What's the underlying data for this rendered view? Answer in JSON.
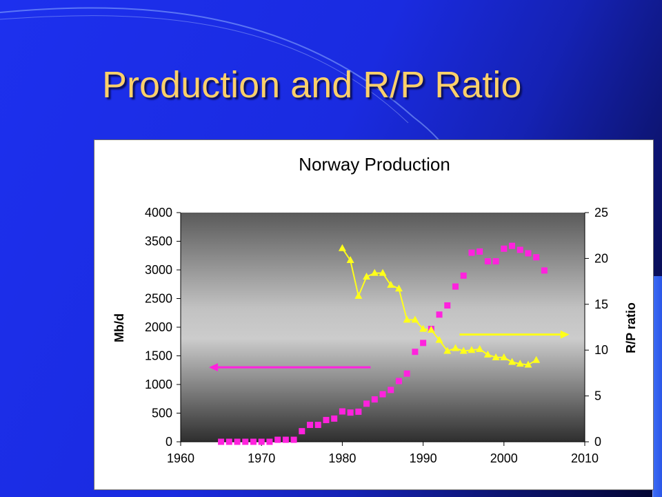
{
  "slide": {
    "title": "Production and R/P Ratio",
    "background_colors": [
      "#1d30ee",
      "#030530"
    ],
    "title_color": "#fbd06a"
  },
  "chart_data": {
    "type": "scatter",
    "title": "Norway Production",
    "xlabel": "",
    "ylabel": "Mb/d",
    "y2label": "R/P ratio",
    "xlim": [
      1960,
      2010
    ],
    "ylim": [
      0,
      4000
    ],
    "y2lim": [
      0,
      25
    ],
    "x_ticks": [
      1960,
      1970,
      1980,
      1990,
      2000,
      2010
    ],
    "y_ticks": [
      0,
      500,
      1000,
      1500,
      2000,
      2500,
      3000,
      3500,
      4000
    ],
    "y2_ticks": [
      0,
      5,
      10,
      15,
      20,
      25
    ],
    "grid": false,
    "legend": "none",
    "plot_background": "gray gradient",
    "series": [
      {
        "axis": "left",
        "marker": "square",
        "line": false,
        "color": "#ff22dd",
        "x": [
          1965,
          1966,
          1967,
          1968,
          1969,
          1970,
          1971,
          1972,
          1973,
          1974,
          1975,
          1976,
          1977,
          1978,
          1979,
          1980,
          1981,
          1982,
          1983,
          1984,
          1985,
          1986,
          1987,
          1988,
          1989,
          1990,
          1991,
          1992,
          1993,
          1994,
          1995,
          1996,
          1997,
          1998,
          1999,
          2000,
          2001,
          2002,
          2003,
          2004,
          2005
        ],
        "y": [
          0,
          0,
          0,
          0,
          0,
          0,
          0,
          35,
          35,
          35,
          185,
          295,
          295,
          380,
          405,
          530,
          510,
          525,
          665,
          740,
          830,
          905,
          1060,
          1190,
          1570,
          1725,
          1970,
          2220,
          2380,
          2710,
          2900,
          3300,
          3320,
          3150,
          3150,
          3370,
          3420,
          3350,
          3290,
          3220,
          2990
        ]
      },
      {
        "axis": "right",
        "marker": "triangle",
        "line": true,
        "color": "#ffff1a",
        "x": [
          1980,
          1981,
          1982,
          1983,
          1984,
          1985,
          1986,
          1987,
          1988,
          1989,
          1990,
          1991,
          1992,
          1993,
          1994,
          1995,
          1996,
          1997,
          1998,
          1999,
          2000,
          2001,
          2002,
          2003,
          2004
        ],
        "y": [
          21.1,
          19.8,
          15.9,
          18.0,
          18.4,
          18.4,
          17.1,
          16.7,
          13.3,
          13.3,
          12.3,
          12.2,
          11.1,
          9.9,
          10.2,
          9.9,
          10.0,
          10.1,
          9.5,
          9.2,
          9.2,
          8.7,
          8.5,
          8.4,
          8.9
        ]
      }
    ],
    "annotations": [
      {
        "type": "arrow",
        "points_to": "left-axis",
        "color": "#ff22dd",
        "from": [
          1983.5,
          1300
        ],
        "to": [
          1963.5,
          1300
        ]
      },
      {
        "type": "arrow",
        "points_to": "right-axis",
        "color": "#ffff1a",
        "from": [
          1994.5,
          11.7
        ],
        "to": [
          2008.1,
          11.7
        ]
      }
    ]
  }
}
